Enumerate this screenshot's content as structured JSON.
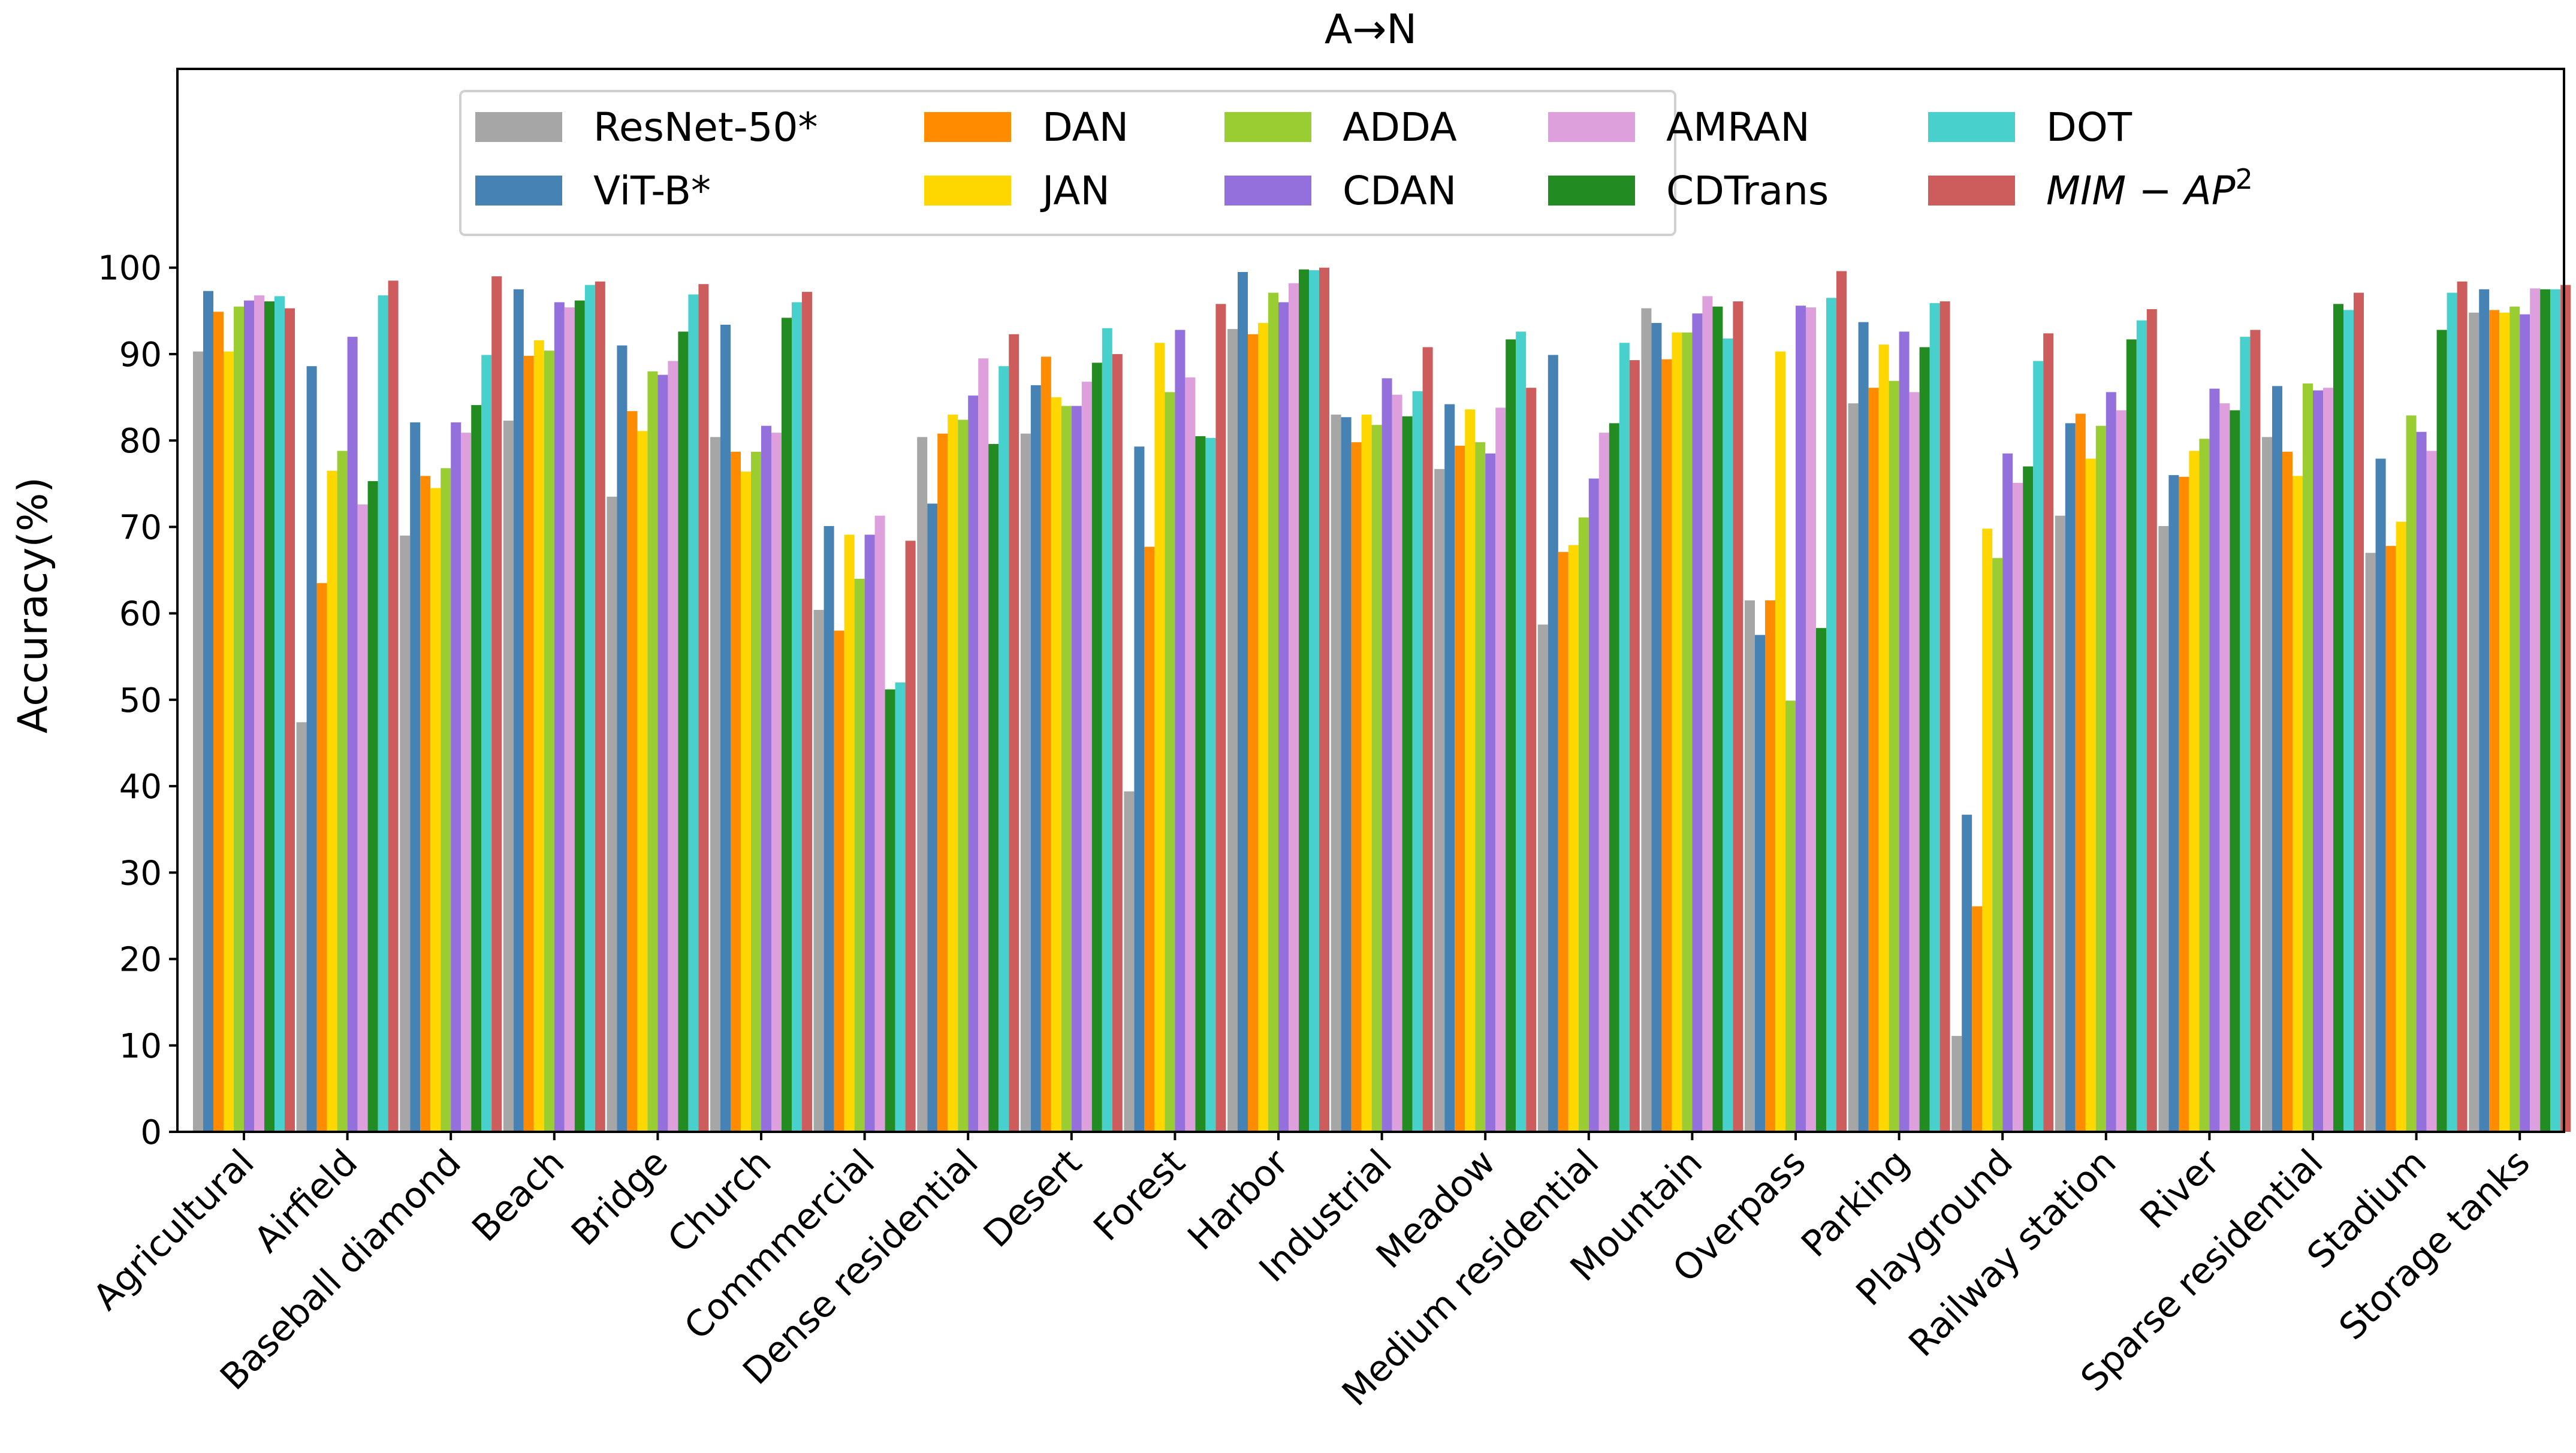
{
  "chart_data": {
    "type": "bar",
    "title": "A→N",
    "xlabel": "",
    "ylabel": "Accuracy(%)",
    "ylim": [
      0,
      123
    ],
    "yticks": [
      0,
      10,
      20,
      30,
      40,
      50,
      60,
      70,
      80,
      90,
      100
    ],
    "legend_position": "top-center",
    "categories": [
      "Agricultural",
      "Airfield",
      "Baseball diamond",
      "Beach",
      "Bridge",
      "Church",
      "Commmercial",
      "Dense residential",
      "Desert",
      "Forest",
      "Harbor",
      "Industrial",
      "Meadow",
      "Medium residential",
      "Mountain",
      "Overpass",
      "Parking",
      "Playground",
      "Railway station",
      "River",
      "Sparse residential",
      "Stadium",
      "Storage tanks"
    ],
    "series": [
      {
        "name": "ResNet-50*",
        "color": "#a6a6a6",
        "values": [
          90.3,
          47.4,
          69.0,
          82.3,
          73.5,
          80.4,
          60.4,
          80.4,
          80.8,
          39.4,
          92.9,
          83.0,
          76.7,
          58.7,
          95.3,
          61.5,
          84.3,
          11.1,
          71.3,
          70.1,
          80.4,
          67.0,
          94.8
        ]
      },
      {
        "name": "ViT-B*",
        "color": "#4682b4",
        "values": [
          97.3,
          88.6,
          82.1,
          97.5,
          91.0,
          93.4,
          70.1,
          72.7,
          86.4,
          79.3,
          99.5,
          82.7,
          84.2,
          89.9,
          93.6,
          57.5,
          93.7,
          36.7,
          82.0,
          76.0,
          86.3,
          77.9,
          97.5
        ]
      },
      {
        "name": "DAN",
        "color": "#ff8c00",
        "values": [
          94.9,
          63.5,
          75.9,
          89.8,
          83.4,
          78.7,
          58.0,
          80.8,
          89.7,
          67.7,
          92.3,
          79.8,
          79.4,
          67.1,
          89.4,
          61.5,
          86.1,
          26.1,
          83.1,
          75.8,
          78.7,
          67.8,
          95.1
        ]
      },
      {
        "name": "JAN",
        "color": "#ffd700",
        "values": [
          90.3,
          76.5,
          74.5,
          91.6,
          81.1,
          76.4,
          69.1,
          83.0,
          85.0,
          91.3,
          93.6,
          83.0,
          83.6,
          67.9,
          92.5,
          90.3,
          91.1,
          69.8,
          77.9,
          78.8,
          75.9,
          70.6,
          94.8
        ]
      },
      {
        "name": "ADDA",
        "color": "#9acd32",
        "values": [
          95.5,
          78.8,
          76.8,
          90.4,
          88.0,
          78.7,
          64.0,
          82.4,
          84.0,
          85.6,
          97.1,
          81.8,
          79.8,
          71.1,
          92.5,
          49.9,
          86.9,
          66.4,
          81.7,
          80.2,
          86.6,
          82.9,
          95.5
        ]
      },
      {
        "name": "CDAN",
        "color": "#9370db",
        "values": [
          96.2,
          92.0,
          82.1,
          96.0,
          87.6,
          81.7,
          69.1,
          85.2,
          84.0,
          92.8,
          96.0,
          87.2,
          78.5,
          75.6,
          94.7,
          95.6,
          92.6,
          78.5,
          85.6,
          86.0,
          85.8,
          81.0,
          94.6
        ]
      },
      {
        "name": "AMRAN",
        "color": "#dda0dd",
        "values": [
          96.8,
          72.6,
          80.9,
          95.4,
          89.2,
          80.9,
          71.3,
          89.5,
          86.8,
          87.3,
          98.2,
          85.3,
          83.8,
          80.9,
          96.7,
          95.4,
          85.6,
          75.1,
          83.5,
          84.3,
          86.1,
          78.8,
          97.6
        ]
      },
      {
        "name": "CDTrans",
        "color": "#228b22",
        "values": [
          96.1,
          75.3,
          84.1,
          96.2,
          92.6,
          94.2,
          51.2,
          79.6,
          89.0,
          80.5,
          99.8,
          82.8,
          91.7,
          82.0,
          95.5,
          58.3,
          90.8,
          77.0,
          91.7,
          83.5,
          95.8,
          92.8,
          97.5
        ]
      },
      {
        "name": "DOT",
        "color": "#48d1cc",
        "values": [
          96.7,
          96.8,
          89.9,
          98.0,
          96.9,
          96.0,
          52.0,
          88.6,
          93.0,
          80.3,
          99.7,
          85.7,
          92.6,
          91.3,
          91.8,
          96.5,
          95.9,
          89.2,
          93.9,
          92.0,
          95.1,
          97.1,
          97.5
        ]
      },
      {
        "name": "MIM-AP2",
        "color": "#cd5c5c",
        "values": [
          95.3,
          98.5,
          99.0,
          98.4,
          98.1,
          97.2,
          68.4,
          92.3,
          90.0,
          95.8,
          100.0,
          90.8,
          86.1,
          89.3,
          96.1,
          99.6,
          96.1,
          92.4,
          95.2,
          92.8,
          97.1,
          98.4,
          98.0
        ]
      }
    ]
  }
}
